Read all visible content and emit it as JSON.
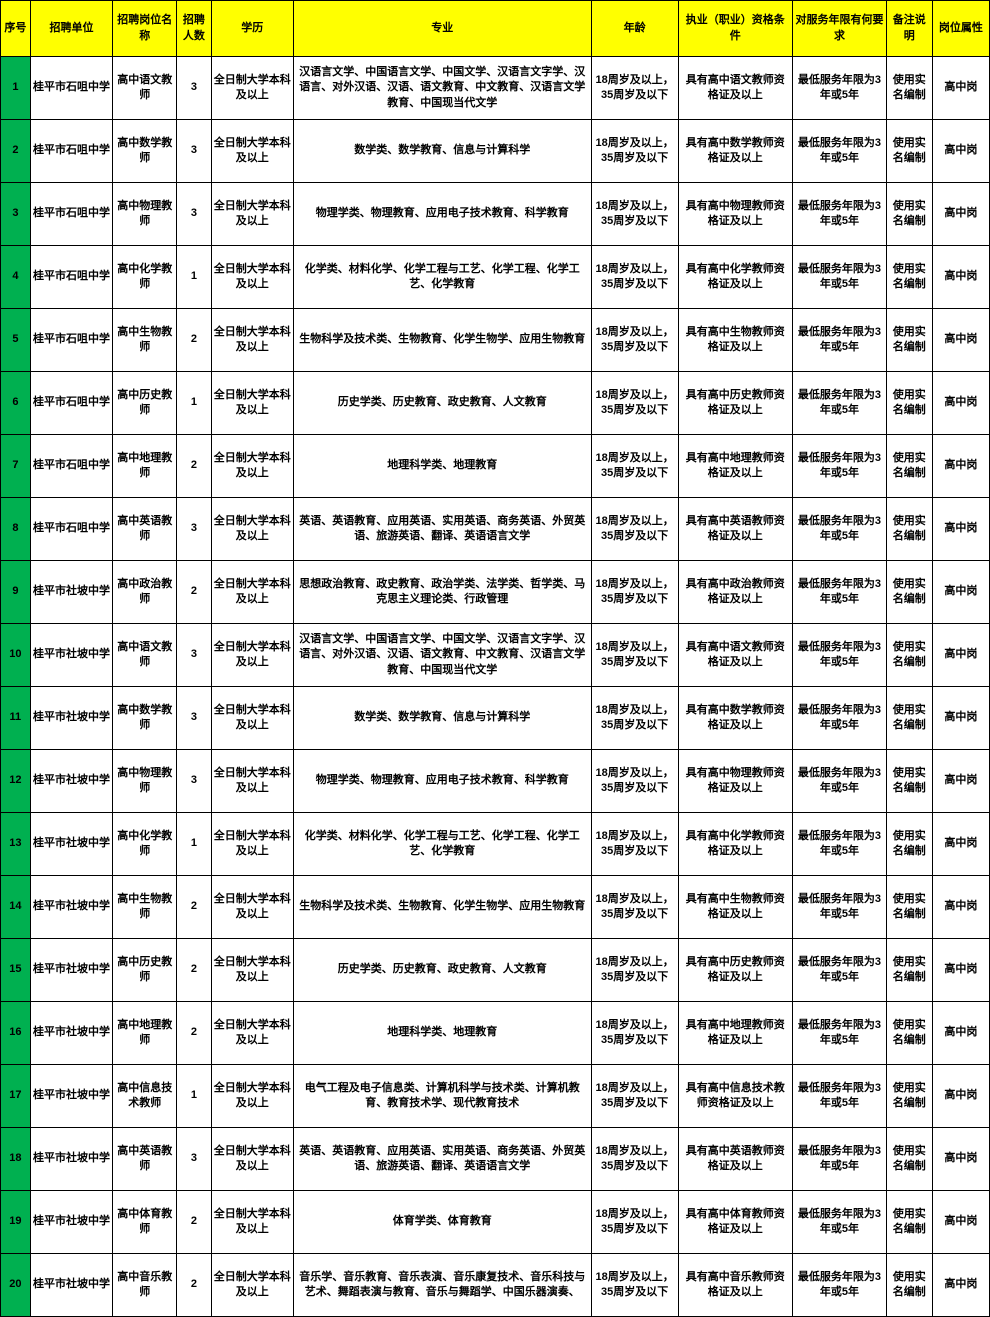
{
  "table": {
    "columns": [
      {
        "key": "seq",
        "label": "序号",
        "class": "col-seq"
      },
      {
        "key": "unit",
        "label": "招聘单位",
        "class": "col-unit"
      },
      {
        "key": "position",
        "label": "招聘岗位名称",
        "class": "col-pos"
      },
      {
        "key": "count",
        "label": "招聘人数",
        "class": "col-num"
      },
      {
        "key": "education",
        "label": "学历",
        "class": "col-edu"
      },
      {
        "key": "major",
        "label": "专业",
        "class": "col-major"
      },
      {
        "key": "age",
        "label": "年龄",
        "class": "col-age"
      },
      {
        "key": "qualification",
        "label": "执业（职业）资格条件",
        "class": "col-qual"
      },
      {
        "key": "service",
        "label": "对服务年限有何要求",
        "class": "col-serv"
      },
      {
        "key": "note",
        "label": "备注说明",
        "class": "col-note"
      },
      {
        "key": "attr",
        "label": "岗位属性",
        "class": "col-attr"
      }
    ],
    "header_bg": "#ffff00",
    "seq_bg": "#00b050",
    "border_color": "#000000",
    "font_size": 11,
    "rows": [
      {
        "seq": "1",
        "unit": "桂平市石咀中学",
        "position": "高中语文教师",
        "count": "3",
        "education": "全日制大学本科及以上",
        "major": "汉语言文学、中国语言文学、中国文学、汉语言文字学、汉语言、对外汉语、汉语、语文教育、中文教育、汉语言文学教育、中国现当代文学",
        "age": "18周岁及以上，35周岁及以下",
        "qualification": "具有高中语文教师资格证及以上",
        "service": "最低服务年限为3年或5年",
        "note": "使用实名编制",
        "attr": "高中岗"
      },
      {
        "seq": "2",
        "unit": "桂平市石咀中学",
        "position": "高中数学教师",
        "count": "3",
        "education": "全日制大学本科及以上",
        "major": "数学类、数学教育、信息与计算科学",
        "age": "18周岁及以上，35周岁及以下",
        "qualification": "具有高中数学教师资格证及以上",
        "service": "最低服务年限为3年或5年",
        "note": "使用实名编制",
        "attr": "高中岗"
      },
      {
        "seq": "3",
        "unit": "桂平市石咀中学",
        "position": "高中物理教师",
        "count": "3",
        "education": "全日制大学本科及以上",
        "major": "物理学类、物理教育、应用电子技术教育、科学教育",
        "age": "18周岁及以上，35周岁及以下",
        "qualification": "具有高中物理教师资格证及以上",
        "service": "最低服务年限为3年或5年",
        "note": "使用实名编制",
        "attr": "高中岗"
      },
      {
        "seq": "4",
        "unit": "桂平市石咀中学",
        "position": "高中化学教师",
        "count": "1",
        "education": "全日制大学本科及以上",
        "major": "化学类、材料化学、化学工程与工艺、化学工程、化学工艺、化学教育",
        "age": "18周岁及以上，35周岁及以下",
        "qualification": "具有高中化学教师资格证及以上",
        "service": "最低服务年限为3年或5年",
        "note": "使用实名编制",
        "attr": "高中岗"
      },
      {
        "seq": "5",
        "unit": "桂平市石咀中学",
        "position": "高中生物教师",
        "count": "2",
        "education": "全日制大学本科及以上",
        "major": "生物科学及技术类、生物教育、化学生物学、应用生物教育",
        "age": "18周岁及以上，35周岁及以下",
        "qualification": "具有高中生物教师资格证及以上",
        "service": "最低服务年限为3年或5年",
        "note": "使用实名编制",
        "attr": "高中岗"
      },
      {
        "seq": "6",
        "unit": "桂平市石咀中学",
        "position": "高中历史教师",
        "count": "1",
        "education": "全日制大学本科及以上",
        "major": "历史学类、历史教育、政史教育、人文教育",
        "age": "18周岁及以上，35周岁及以下",
        "qualification": "具有高中历史教师资格证及以上",
        "service": "最低服务年限为3年或5年",
        "note": "使用实名编制",
        "attr": "高中岗"
      },
      {
        "seq": "7",
        "unit": "桂平市石咀中学",
        "position": "高中地理教师",
        "count": "2",
        "education": "全日制大学本科及以上",
        "major": "地理科学类、地理教育",
        "age": "18周岁及以上，35周岁及以下",
        "qualification": "具有高中地理教师资格证及以上",
        "service": "最低服务年限为3年或5年",
        "note": "使用实名编制",
        "attr": "高中岗"
      },
      {
        "seq": "8",
        "unit": "桂平市石咀中学",
        "position": "高中英语教师",
        "count": "3",
        "education": "全日制大学本科及以上",
        "major": "英语、英语教育、应用英语、实用英语、商务英语、外贸英语、旅游英语、翻译、英语语言文学",
        "age": "18周岁及以上，35周岁及以下",
        "qualification": "具有高中英语教师资格证及以上",
        "service": "最低服务年限为3年或5年",
        "note": "使用实名编制",
        "attr": "高中岗"
      },
      {
        "seq": "9",
        "unit": "桂平市社坡中学",
        "position": "高中政治教师",
        "count": "2",
        "education": "全日制大学本科及以上",
        "major": "思想政治教育、政史教育、政治学类、法学类、哲学类、马克思主义理论类、行政管理",
        "age": "18周岁及以上，35周岁及以下",
        "qualification": "具有高中政治教师资格证及以上",
        "service": "最低服务年限为3年或5年",
        "note": "使用实名编制",
        "attr": "高中岗"
      },
      {
        "seq": "10",
        "unit": "桂平市社坡中学",
        "position": "高中语文教师",
        "count": "3",
        "education": "全日制大学本科及以上",
        "major": "汉语言文学、中国语言文学、中国文学、汉语言文字学、汉语言、对外汉语、汉语、语文教育、中文教育、汉语言文学教育、中国现当代文学",
        "age": "18周岁及以上，35周岁及以下",
        "qualification": "具有高中语文教师资格证及以上",
        "service": "最低服务年限为3年或5年",
        "note": "使用实名编制",
        "attr": "高中岗"
      },
      {
        "seq": "11",
        "unit": "桂平市社坡中学",
        "position": "高中数学教师",
        "count": "3",
        "education": "全日制大学本科及以上",
        "major": "数学类、数学教育、信息与计算科学",
        "age": "18周岁及以上，35周岁及以下",
        "qualification": "具有高中数学教师资格证及以上",
        "service": "最低服务年限为3年或5年",
        "note": "使用实名编制",
        "attr": "高中岗"
      },
      {
        "seq": "12",
        "unit": "桂平市社坡中学",
        "position": "高中物理教师",
        "count": "3",
        "education": "全日制大学本科及以上",
        "major": "物理学类、物理教育、应用电子技术教育、科学教育",
        "age": "18周岁及以上，35周岁及以下",
        "qualification": "具有高中物理教师资格证及以上",
        "service": "最低服务年限为3年或5年",
        "note": "使用实名编制",
        "attr": "高中岗"
      },
      {
        "seq": "13",
        "unit": "桂平市社坡中学",
        "position": "高中化学教师",
        "count": "1",
        "education": "全日制大学本科及以上",
        "major": "化学类、材料化学、化学工程与工艺、化学工程、化学工艺、化学教育",
        "age": "18周岁及以上，35周岁及以下",
        "qualification": "具有高中化学教师资格证及以上",
        "service": "最低服务年限为3年或5年",
        "note": "使用实名编制",
        "attr": "高中岗"
      },
      {
        "seq": "14",
        "unit": "桂平市社坡中学",
        "position": "高中生物教师",
        "count": "2",
        "education": "全日制大学本科及以上",
        "major": "生物科学及技术类、生物教育、化学生物学、应用生物教育",
        "age": "18周岁及以上，35周岁及以下",
        "qualification": "具有高中生物教师资格证及以上",
        "service": "最低服务年限为3年或5年",
        "note": "使用实名编制",
        "attr": "高中岗"
      },
      {
        "seq": "15",
        "unit": "桂平市社坡中学",
        "position": "高中历史教师",
        "count": "2",
        "education": "全日制大学本科及以上",
        "major": "历史学类、历史教育、政史教育、人文教育",
        "age": "18周岁及以上，35周岁及以下",
        "qualification": "具有高中历史教师资格证及以上",
        "service": "最低服务年限为3年或5年",
        "note": "使用实名编制",
        "attr": "高中岗"
      },
      {
        "seq": "16",
        "unit": "桂平市社坡中学",
        "position": "高中地理教师",
        "count": "2",
        "education": "全日制大学本科及以上",
        "major": "地理科学类、地理教育",
        "age": "18周岁及以上，35周岁及以下",
        "qualification": "具有高中地理教师资格证及以上",
        "service": "最低服务年限为3年或5年",
        "note": "使用实名编制",
        "attr": "高中岗"
      },
      {
        "seq": "17",
        "unit": "桂平市社坡中学",
        "position": "高中信息技术教师",
        "count": "1",
        "education": "全日制大学本科及以上",
        "major": "电气工程及电子信息类、计算机科学与技术类、计算机教育、教育技术学、现代教育技术",
        "age": "18周岁及以上，35周岁及以下",
        "qualification": "具有高中信息技术教师资格证及以上",
        "service": "最低服务年限为3年或5年",
        "note": "使用实名编制",
        "attr": "高中岗"
      },
      {
        "seq": "18",
        "unit": "桂平市社坡中学",
        "position": "高中英语教师",
        "count": "3",
        "education": "全日制大学本科及以上",
        "major": "英语、英语教育、应用英语、实用英语、商务英语、外贸英语、旅游英语、翻译、英语语言文学",
        "age": "18周岁及以上，35周岁及以下",
        "qualification": "具有高中英语教师资格证及以上",
        "service": "最低服务年限为3年或5年",
        "note": "使用实名编制",
        "attr": "高中岗"
      },
      {
        "seq": "19",
        "unit": "桂平市社坡中学",
        "position": "高中体育教师",
        "count": "2",
        "education": "全日制大学本科及以上",
        "major": "体育学类、体育教育",
        "age": "18周岁及以上，35周岁及以下",
        "qualification": "具有高中体育教师资格证及以上",
        "service": "最低服务年限为3年或5年",
        "note": "使用实名编制",
        "attr": "高中岗"
      },
      {
        "seq": "20",
        "unit": "桂平市社坡中学",
        "position": "高中音乐教师",
        "count": "2",
        "education": "全日制大学本科及以上",
        "major": "音乐学、音乐教育、音乐表演、音乐康复技术、音乐科技与艺术、舞蹈表演与教育、音乐与舞蹈学、中国乐器演奏、",
        "age": "18周岁及以上，35周岁及以下",
        "qualification": "具有高中音乐教师资格证及以上",
        "service": "最低服务年限为3年或5年",
        "note": "使用实名编制",
        "attr": "高中岗"
      }
    ]
  }
}
